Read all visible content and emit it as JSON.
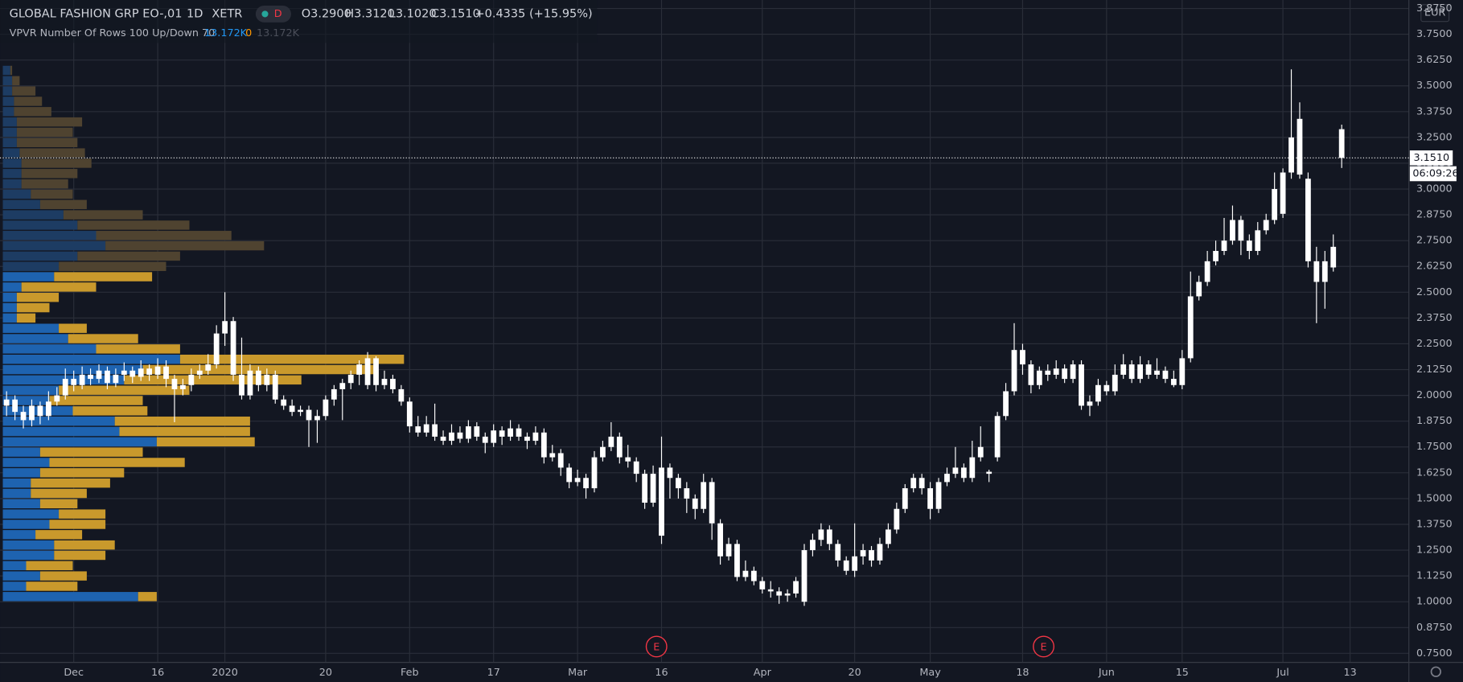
{
  "header": {
    "symbol": "GLOBAL FASHION GRP EO-,01",
    "interval": "1D",
    "exchange": "XETR",
    "badge": "D",
    "ohlc": [
      "O3.2900",
      "H3.3120",
      "L3.1020",
      "C3.1510",
      "+0.4335 (+15.95%)"
    ],
    "indicator": {
      "name": "VPVR Number Of Rows 100 Up/Down 70",
      "values": [
        "13.172K",
        "0",
        "13.172K"
      ]
    }
  },
  "chart_data": {
    "type": "candlestick",
    "candle_color": "#ffffff",
    "xlim": [
      -0.78,
      167
    ],
    "ylim": [
      0.706,
      3.916
    ],
    "grid": true,
    "xticks": [
      {
        "value": 8,
        "label": "Dec"
      },
      {
        "value": 18,
        "label": "16"
      },
      {
        "value": 26,
        "label": "2020"
      },
      {
        "value": 38,
        "label": "20"
      },
      {
        "value": 48,
        "label": "Feb"
      },
      {
        "value": 58,
        "label": "17"
      },
      {
        "value": 68,
        "label": "Mar"
      },
      {
        "value": 78,
        "label": "16"
      },
      {
        "value": 90,
        "label": "Apr"
      },
      {
        "value": 101,
        "label": "20"
      },
      {
        "value": 110,
        "label": "May"
      },
      {
        "value": 121,
        "label": "18"
      },
      {
        "value": 131,
        "label": "Jun"
      },
      {
        "value": 140,
        "label": "15"
      },
      {
        "value": 152,
        "label": "Jul"
      },
      {
        "value": 160,
        "label": "13"
      }
    ],
    "yticks": [
      {
        "value": 0.75,
        "label": "0.7500"
      },
      {
        "value": 0.875,
        "label": "0.8750"
      },
      {
        "value": 1.0,
        "label": "1.0000"
      },
      {
        "value": 1.125,
        "label": "1.1250"
      },
      {
        "value": 1.25,
        "label": "1.2500"
      },
      {
        "value": 1.375,
        "label": "1.3750"
      },
      {
        "value": 1.5,
        "label": "1.5000"
      },
      {
        "value": 1.625,
        "label": "1.6250"
      },
      {
        "value": 1.75,
        "label": "1.7500"
      },
      {
        "value": 1.875,
        "label": "1.8750"
      },
      {
        "value": 2.0,
        "label": "2.0000"
      },
      {
        "value": 2.125,
        "label": "2.1250"
      },
      {
        "value": 2.25,
        "label": "2.2500"
      },
      {
        "value": 2.375,
        "label": "2.3750"
      },
      {
        "value": 2.5,
        "label": "2.5000"
      },
      {
        "value": 2.625,
        "label": "2.6250"
      },
      {
        "value": 2.75,
        "label": "2.7500"
      },
      {
        "value": 2.875,
        "label": "2.8750"
      },
      {
        "value": 3.0,
        "label": "3.0000"
      },
      {
        "value": 3.125,
        "label": "3.1250"
      },
      {
        "value": 3.25,
        "label": "3.2500"
      },
      {
        "value": 3.375,
        "label": "3.3750"
      },
      {
        "value": 3.5,
        "label": "3.5000"
      },
      {
        "value": 3.625,
        "label": "3.6250"
      },
      {
        "value": 3.75,
        "label": "3.7500"
      },
      {
        "value": 3.875,
        "label": "3.8750"
      }
    ],
    "currency": "EUR",
    "last_price": {
      "value": 3.151,
      "label": "3.1510"
    },
    "countdown": "06:09:26",
    "events": [
      {
        "x": 77.4,
        "label": "E"
      },
      {
        "x": 123.5,
        "label": "E"
      }
    ],
    "ohlc": [
      [
        1.95,
        2.02,
        1.9,
        1.98
      ],
      [
        1.98,
        2.0,
        1.88,
        1.92
      ],
      [
        1.92,
        1.95,
        1.84,
        1.88
      ],
      [
        1.88,
        1.98,
        1.85,
        1.95
      ],
      [
        1.95,
        1.97,
        1.86,
        1.9
      ],
      [
        1.9,
        2.02,
        1.88,
        1.97
      ],
      [
        1.97,
        2.04,
        1.95,
        2.0
      ],
      [
        2.0,
        2.13,
        1.98,
        2.08
      ],
      [
        2.08,
        2.12,
        2.02,
        2.05
      ],
      [
        2.05,
        2.14,
        2.03,
        2.1
      ],
      [
        2.1,
        2.13,
        2.05,
        2.08
      ],
      [
        2.08,
        2.15,
        2.06,
        2.12
      ],
      [
        2.12,
        2.14,
        2.03,
        2.06
      ],
      [
        2.06,
        2.13,
        2.04,
        2.1
      ],
      [
        2.1,
        2.16,
        2.07,
        2.12
      ],
      [
        2.12,
        2.14,
        2.06,
        2.09
      ],
      [
        2.09,
        2.17,
        2.07,
        2.13
      ],
      [
        2.13,
        2.15,
        2.07,
        2.1
      ],
      [
        2.1,
        2.18,
        2.08,
        2.14
      ],
      [
        2.14,
        2.17,
        2.04,
        2.08
      ],
      [
        2.08,
        2.1,
        1.87,
        2.03
      ],
      [
        2.03,
        2.08,
        2.0,
        2.05
      ],
      [
        2.05,
        2.13,
        2.02,
        2.1
      ],
      [
        2.1,
        2.15,
        2.08,
        2.12
      ],
      [
        2.12,
        2.2,
        2.1,
        2.15
      ],
      [
        2.15,
        2.34,
        2.13,
        2.3
      ],
      [
        2.3,
        2.5,
        2.24,
        2.36
      ],
      [
        2.36,
        2.38,
        2.07,
        2.1
      ],
      [
        2.1,
        2.28,
        1.98,
        2.0
      ],
      [
        2.0,
        2.15,
        1.98,
        2.12
      ],
      [
        2.12,
        2.14,
        2.02,
        2.05
      ],
      [
        2.05,
        2.13,
        2.02,
        2.1
      ],
      [
        2.1,
        2.12,
        1.96,
        1.98
      ],
      [
        1.98,
        2.0,
        1.93,
        1.95
      ],
      [
        1.95,
        1.98,
        1.9,
        1.92
      ],
      [
        1.92,
        1.95,
        1.9,
        1.93
      ],
      [
        1.93,
        1.95,
        1.75,
        1.88
      ],
      [
        1.88,
        1.93,
        1.77,
        1.9
      ],
      [
        1.9,
        2.0,
        1.88,
        1.98
      ],
      [
        1.98,
        2.05,
        1.95,
        2.03
      ],
      [
        2.03,
        2.08,
        1.88,
        2.06
      ],
      [
        2.06,
        2.12,
        2.03,
        2.1
      ],
      [
        2.1,
        2.17,
        2.05,
        2.15
      ],
      [
        2.05,
        2.21,
        2.03,
        2.18
      ],
      [
        2.18,
        2.19,
        2.02,
        2.05
      ],
      [
        2.05,
        2.12,
        2.03,
        2.08
      ],
      [
        2.08,
        2.1,
        2.01,
        2.03
      ],
      [
        2.03,
        2.05,
        1.95,
        1.97
      ],
      [
        1.97,
        1.99,
        1.82,
        1.85
      ],
      [
        1.85,
        1.9,
        1.8,
        1.82
      ],
      [
        1.82,
        1.9,
        1.8,
        1.86
      ],
      [
        1.86,
        1.96,
        1.78,
        1.8
      ],
      [
        1.8,
        1.83,
        1.76,
        1.78
      ],
      [
        1.78,
        1.86,
        1.76,
        1.82
      ],
      [
        1.82,
        1.85,
        1.77,
        1.79
      ],
      [
        1.79,
        1.88,
        1.77,
        1.85
      ],
      [
        1.85,
        1.87,
        1.78,
        1.8
      ],
      [
        1.8,
        1.82,
        1.72,
        1.77
      ],
      [
        1.77,
        1.86,
        1.75,
        1.83
      ],
      [
        1.83,
        1.85,
        1.76,
        1.8
      ],
      [
        1.8,
        1.88,
        1.78,
        1.84
      ],
      [
        1.84,
        1.86,
        1.78,
        1.8
      ],
      [
        1.8,
        1.82,
        1.74,
        1.78
      ],
      [
        1.78,
        1.85,
        1.76,
        1.82
      ],
      [
        1.82,
        1.84,
        1.67,
        1.7
      ],
      [
        1.7,
        1.76,
        1.68,
        1.72
      ],
      [
        1.72,
        1.74,
        1.61,
        1.65
      ],
      [
        1.65,
        1.67,
        1.55,
        1.58
      ],
      [
        1.58,
        1.64,
        1.56,
        1.6
      ],
      [
        1.6,
        1.62,
        1.5,
        1.55
      ],
      [
        1.55,
        1.73,
        1.53,
        1.7
      ],
      [
        1.7,
        1.78,
        1.68,
        1.75
      ],
      [
        1.75,
        1.87,
        1.73,
        1.8
      ],
      [
        1.8,
        1.82,
        1.67,
        1.7
      ],
      [
        1.7,
        1.76,
        1.65,
        1.68
      ],
      [
        1.68,
        1.7,
        1.58,
        1.62
      ],
      [
        1.62,
        1.64,
        1.45,
        1.48
      ],
      [
        1.48,
        1.66,
        1.46,
        1.62
      ],
      [
        1.32,
        1.8,
        1.28,
        1.65
      ],
      [
        1.65,
        1.67,
        1.5,
        1.6
      ],
      [
        1.6,
        1.62,
        1.5,
        1.55
      ],
      [
        1.55,
        1.58,
        1.43,
        1.5
      ],
      [
        1.5,
        1.52,
        1.4,
        1.45
      ],
      [
        1.45,
        1.62,
        1.43,
        1.58
      ],
      [
        1.58,
        1.6,
        1.3,
        1.38
      ],
      [
        1.38,
        1.4,
        1.18,
        1.22
      ],
      [
        1.22,
        1.31,
        1.2,
        1.28
      ],
      [
        1.28,
        1.3,
        1.1,
        1.12
      ],
      [
        1.12,
        1.2,
        1.1,
        1.15
      ],
      [
        1.15,
        1.17,
        1.08,
        1.1
      ],
      [
        1.1,
        1.12,
        1.04,
        1.06
      ],
      [
        1.06,
        1.1,
        1.02,
        1.05
      ],
      [
        1.05,
        1.07,
        0.99,
        1.03
      ],
      [
        1.03,
        1.06,
        1.0,
        1.04
      ],
      [
        1.04,
        1.12,
        1.02,
        1.1
      ],
      [
        1.0,
        1.28,
        0.98,
        1.25
      ],
      [
        1.25,
        1.33,
        1.22,
        1.3
      ],
      [
        1.3,
        1.38,
        1.27,
        1.35
      ],
      [
        1.35,
        1.37,
        1.25,
        1.28
      ],
      [
        1.28,
        1.3,
        1.17,
        1.2
      ],
      [
        1.2,
        1.22,
        1.13,
        1.15
      ],
      [
        1.15,
        1.38,
        1.12,
        1.22
      ],
      [
        1.22,
        1.28,
        1.18,
        1.25
      ],
      [
        1.25,
        1.27,
        1.17,
        1.2
      ],
      [
        1.2,
        1.31,
        1.18,
        1.28
      ],
      [
        1.28,
        1.38,
        1.26,
        1.35
      ],
      [
        1.35,
        1.48,
        1.33,
        1.45
      ],
      [
        1.45,
        1.57,
        1.43,
        1.55
      ],
      [
        1.55,
        1.62,
        1.53,
        1.6
      ],
      [
        1.6,
        1.62,
        1.52,
        1.55
      ],
      [
        1.55,
        1.58,
        1.4,
        1.45
      ],
      [
        1.45,
        1.6,
        1.43,
        1.58
      ],
      [
        1.58,
        1.65,
        1.56,
        1.62
      ],
      [
        1.62,
        1.75,
        1.6,
        1.65
      ],
      [
        1.65,
        1.67,
        1.58,
        1.6
      ],
      [
        1.6,
        1.78,
        1.58,
        1.7
      ],
      [
        1.7,
        1.85,
        1.68,
        1.75
      ],
      [
        1.63,
        1.64,
        1.58,
        1.62
      ],
      [
        1.7,
        1.92,
        1.68,
        1.9
      ],
      [
        1.9,
        2.06,
        1.88,
        2.02
      ],
      [
        2.02,
        2.35,
        2.0,
        2.22
      ],
      [
        2.22,
        2.25,
        2.1,
        2.15
      ],
      [
        2.15,
        2.17,
        2.01,
        2.05
      ],
      [
        2.05,
        2.14,
        2.03,
        2.12
      ],
      [
        2.12,
        2.15,
        2.07,
        2.1
      ],
      [
        2.1,
        2.17,
        2.08,
        2.13
      ],
      [
        2.13,
        2.15,
        2.06,
        2.08
      ],
      [
        2.08,
        2.17,
        2.06,
        2.15
      ],
      [
        2.15,
        2.17,
        1.93,
        1.95
      ],
      [
        1.95,
        2.0,
        1.9,
        1.97
      ],
      [
        1.97,
        2.08,
        1.95,
        2.05
      ],
      [
        2.05,
        2.07,
        2.0,
        2.02
      ],
      [
        2.02,
        2.15,
        2.0,
        2.1
      ],
      [
        2.1,
        2.2,
        2.08,
        2.15
      ],
      [
        2.15,
        2.17,
        2.06,
        2.08
      ],
      [
        2.08,
        2.19,
        2.06,
        2.15
      ],
      [
        2.15,
        2.17,
        2.08,
        2.1
      ],
      [
        2.1,
        2.18,
        2.08,
        2.12
      ],
      [
        2.12,
        2.14,
        2.06,
        2.08
      ],
      [
        2.08,
        2.12,
        2.04,
        2.05
      ],
      [
        2.05,
        2.22,
        2.03,
        2.18
      ],
      [
        2.18,
        2.6,
        2.16,
        2.48
      ],
      [
        2.48,
        2.58,
        2.46,
        2.55
      ],
      [
        2.55,
        2.7,
        2.53,
        2.65
      ],
      [
        2.65,
        2.75,
        2.63,
        2.7
      ],
      [
        2.7,
        2.86,
        2.68,
        2.75
      ],
      [
        2.75,
        2.92,
        2.73,
        2.85
      ],
      [
        2.85,
        2.87,
        2.68,
        2.75
      ],
      [
        2.75,
        2.78,
        2.66,
        2.7
      ],
      [
        2.7,
        2.84,
        2.68,
        2.8
      ],
      [
        2.8,
        2.88,
        2.78,
        2.85
      ],
      [
        2.85,
        3.08,
        2.83,
        3.0
      ],
      [
        2.88,
        3.1,
        2.86,
        3.08
      ],
      [
        3.08,
        3.58,
        3.05,
        3.25
      ],
      [
        3.07,
        3.42,
        3.05,
        3.34
      ],
      [
        3.05,
        3.08,
        2.62,
        2.65
      ],
      [
        2.65,
        2.72,
        2.35,
        2.55
      ],
      [
        2.55,
        2.7,
        2.42,
        2.65
      ],
      [
        2.62,
        2.78,
        2.6,
        2.72
      ],
      [
        3.29,
        3.312,
        3.102,
        3.151
      ]
    ],
    "profile": {
      "xlim": [
        0,
        1510
      ],
      "value_area": [
        1.0,
        2.6
      ],
      "up_color": "#1e63b0",
      "down_color": "#c9992c",
      "up_dim_color": "#1d3c63",
      "down_dim_color": "#4f4330",
      "prices": [
        1.0,
        1.05,
        1.1,
        1.15,
        1.2,
        1.25,
        1.3,
        1.35,
        1.4,
        1.45,
        1.5,
        1.55,
        1.6,
        1.65,
        1.7,
        1.75,
        1.8,
        1.85,
        1.9,
        1.95,
        2.0,
        2.05,
        2.1,
        2.15,
        2.2,
        2.25,
        2.3,
        2.35,
        2.4,
        2.45,
        2.5,
        2.55,
        2.6,
        2.65,
        2.7,
        2.75,
        2.8,
        2.85,
        2.9,
        2.95,
        3.0,
        3.05,
        3.1,
        3.15,
        3.2,
        3.25,
        3.3,
        3.35,
        3.4,
        3.45,
        3.5,
        3.55
      ],
      "up": [
        145,
        25,
        40,
        25,
        55,
        55,
        35,
        50,
        60,
        40,
        30,
        30,
        40,
        50,
        40,
        165,
        125,
        120,
        75,
        50,
        60,
        130,
        150,
        190,
        100,
        70,
        60,
        15,
        15,
        15,
        20,
        55,
        60,
        80,
        110,
        100,
        80,
        65,
        40,
        30,
        20,
        20,
        20,
        18,
        15,
        15,
        15,
        12,
        12,
        10,
        10,
        8
      ],
      "down": [
        20,
        55,
        50,
        50,
        55,
        65,
        50,
        60,
        50,
        40,
        60,
        85,
        90,
        145,
        110,
        105,
        140,
        145,
        80,
        100,
        140,
        190,
        250,
        240,
        90,
        75,
        30,
        20,
        35,
        45,
        80,
        105,
        115,
        110,
        170,
        145,
        120,
        85,
        50,
        45,
        50,
        60,
        75,
        70,
        65,
        60,
        70,
        40,
        30,
        25,
        8,
        2
      ]
    }
  }
}
